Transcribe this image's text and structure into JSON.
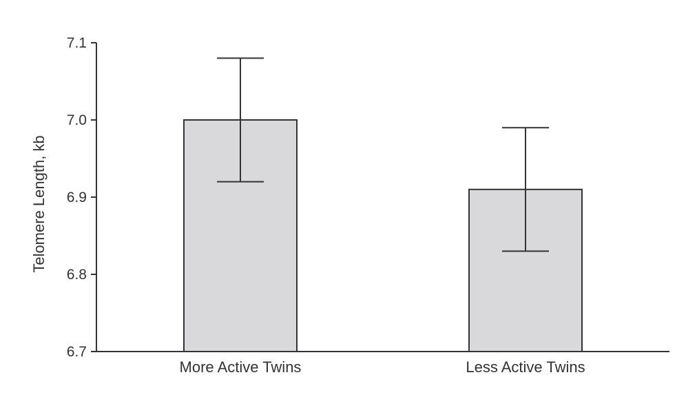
{
  "chart_data": {
    "type": "bar",
    "title": "",
    "xlabel": "",
    "ylabel": "Telomere Length, kb",
    "ylim": [
      6.7,
      7.1
    ],
    "yticks": [
      "6.7",
      "6.8",
      "6.9",
      "7.0",
      "7.1"
    ],
    "categories": [
      "More Active Twins",
      "Less Active Twins"
    ],
    "values": [
      7.0,
      6.91
    ],
    "error_upper": [
      7.08,
      6.99
    ],
    "error_lower": [
      6.92,
      6.83
    ],
    "grid": false,
    "legend": "none"
  },
  "colors": {
    "bar_fill": "#d9d9db",
    "bar_stroke": "#333333",
    "axis": "#333333",
    "text": "#333333"
  }
}
